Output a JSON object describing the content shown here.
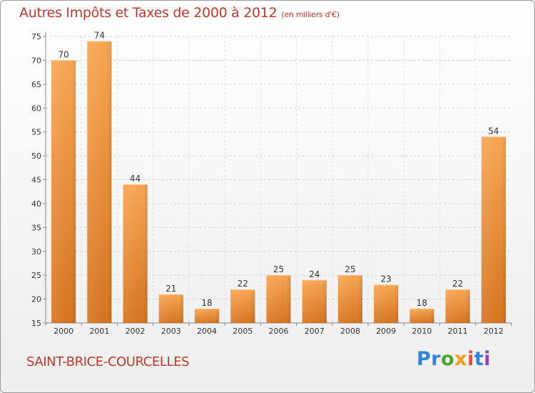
{
  "chart_data": {
    "type": "bar",
    "title": "Autres Impôts et Taxes de 2000 à 2012",
    "subtitle": "(en milliers d'€)",
    "categories": [
      "2000",
      "2001",
      "2002",
      "2003",
      "2004",
      "2005",
      "2006",
      "2007",
      "2008",
      "2009",
      "2010",
      "2011",
      "2012"
    ],
    "values": [
      70,
      74,
      44,
      21,
      18,
      22,
      25,
      24,
      25,
      23,
      18,
      22,
      54
    ],
    "ylim": [
      15,
      75
    ],
    "yticks": [
      15,
      20,
      25,
      30,
      35,
      40,
      45,
      50,
      55,
      60,
      65,
      70,
      75
    ],
    "grid": true,
    "xlabel": "",
    "ylabel": "",
    "bar_color_light": "#f7a552",
    "bar_color_dark": "#d5731f"
  },
  "footer": {
    "commune": "SAINT-BRICE-COURCELLES",
    "logo_parts": [
      "Pr",
      "o",
      "x",
      "i",
      "t",
      "i"
    ]
  }
}
